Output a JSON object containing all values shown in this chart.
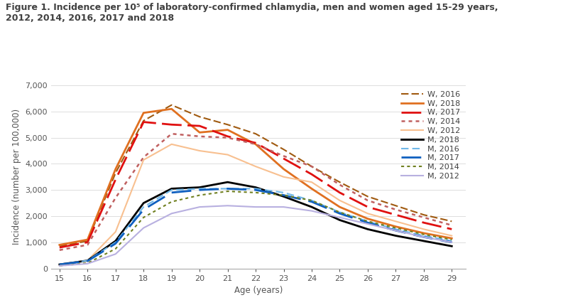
{
  "title_line1": "Figure 1. Incidence per 10⁵ of laboratory-confirmed chlamydia, men and women aged 15-29 years,",
  "title_line2": "2012, 2014, 2016, 2017 and 2018",
  "xlabel": "Age (years)",
  "ylabel": "Incidence (number per 100,000)",
  "ages": [
    15,
    16,
    17,
    18,
    19,
    20,
    21,
    22,
    23,
    24,
    25,
    26,
    27,
    28,
    29
  ],
  "ylim": [
    0,
    7000
  ],
  "yticks": [
    0,
    1000,
    2000,
    3000,
    4000,
    5000,
    6000,
    7000
  ],
  "ytick_labels": [
    "0",
    "1,000",
    "2,000",
    "3,000",
    "4,000",
    "5,000",
    "6,000",
    "7,000"
  ],
  "series": {
    "W_2016": {
      "color": "#a05a10",
      "linestyle": "dashed",
      "dashes": [
        5,
        2
      ],
      "linewidth": 1.5,
      "values": [
        850,
        1050,
        3650,
        5650,
        6250,
        5800,
        5500,
        5150,
        4550,
        3900,
        3300,
        2750,
        2400,
        2050,
        1800
      ]
    },
    "W_2018": {
      "color": "#e07020",
      "linestyle": "solid",
      "dashes": null,
      "linewidth": 2.0,
      "values": [
        900,
        1100,
        3800,
        5950,
        6100,
        5200,
        5300,
        4750,
        3800,
        3050,
        2350,
        1900,
        1600,
        1350,
        1150
      ]
    },
    "W_2017": {
      "color": "#e01010",
      "linestyle": "dashed",
      "dashes": [
        10,
        3
      ],
      "linewidth": 2.0,
      "values": [
        800,
        1000,
        3400,
        5600,
        5500,
        5450,
        5050,
        4800,
        4200,
        3600,
        2900,
        2350,
        2050,
        1750,
        1500
      ]
    },
    "W_2014": {
      "color": "#c06060",
      "linestyle": "dotted",
      "dashes": [
        2,
        2
      ],
      "linewidth": 1.8,
      "values": [
        700,
        900,
        2700,
        4250,
        5150,
        5050,
        5000,
        4750,
        4300,
        3900,
        3200,
        2600,
        2250,
        1950,
        1650
      ]
    },
    "W_2012": {
      "color": "#f8c090",
      "linestyle": "solid",
      "dashes": null,
      "linewidth": 1.5,
      "values": [
        150,
        300,
        1400,
        4150,
        4750,
        4500,
        4350,
        3900,
        3500,
        3300,
        2600,
        2100,
        1800,
        1500,
        1250
      ]
    },
    "M_2018": {
      "color": "#000000",
      "linestyle": "solid",
      "dashes": null,
      "linewidth": 2.0,
      "values": [
        150,
        300,
        1050,
        2500,
        3050,
        3100,
        3300,
        3100,
        2750,
        2350,
        1850,
        1500,
        1250,
        1050,
        850
      ]
    },
    "M_2016": {
      "color": "#70b8e8",
      "linestyle": "dashed",
      "dashes": [
        5,
        2.5
      ],
      "linewidth": 1.5,
      "values": [
        150,
        300,
        1000,
        2350,
        3000,
        3050,
        3050,
        3050,
        2900,
        2600,
        2150,
        1800,
        1500,
        1250,
        1050
      ]
    },
    "M_2017": {
      "color": "#1060c0",
      "linestyle": "dashed",
      "dashes": [
        10,
        4
      ],
      "linewidth": 2.0,
      "values": [
        150,
        280,
        950,
        2250,
        2900,
        3000,
        3050,
        3000,
        2800,
        2550,
        2100,
        1750,
        1450,
        1200,
        1000
      ]
    },
    "M_2014": {
      "color": "#708020",
      "linestyle": "dotted",
      "dashes": [
        2,
        2
      ],
      "linewidth": 1.5,
      "values": [
        100,
        200,
        750,
        1950,
        2550,
        2800,
        2950,
        2900,
        2800,
        2600,
        2150,
        1800,
        1550,
        1300,
        1100
      ]
    },
    "M_2012": {
      "color": "#b8b0e0",
      "linestyle": "solid",
      "dashes": null,
      "linewidth": 1.5,
      "values": [
        100,
        180,
        550,
        1550,
        2100,
        2350,
        2400,
        2350,
        2350,
        2200,
        1950,
        1700,
        1450,
        1200,
        1000
      ]
    }
  },
  "legend_order": [
    "W_2016",
    "W_2018",
    "W_2017",
    "W_2014",
    "W_2012",
    "M_2018",
    "M_2016",
    "M_2017",
    "M_2014",
    "M_2012"
  ],
  "legend_labels": {
    "W_2016": "W, 2016",
    "W_2018": "W, 2018",
    "W_2017": "W, 2017",
    "W_2014": "W, 2014",
    "W_2012": "W, 2012",
    "M_2018": "M, 2018",
    "M_2016": "M, 2016",
    "M_2017": "M, 2017",
    "M_2014": "M, 2014",
    "M_2012": "M, 2012"
  },
  "background_color": "#ffffff",
  "title_fontsize": 9.0,
  "axis_label_fontsize": 8.5,
  "tick_fontsize": 8.0,
  "legend_fontsize": 8.0
}
